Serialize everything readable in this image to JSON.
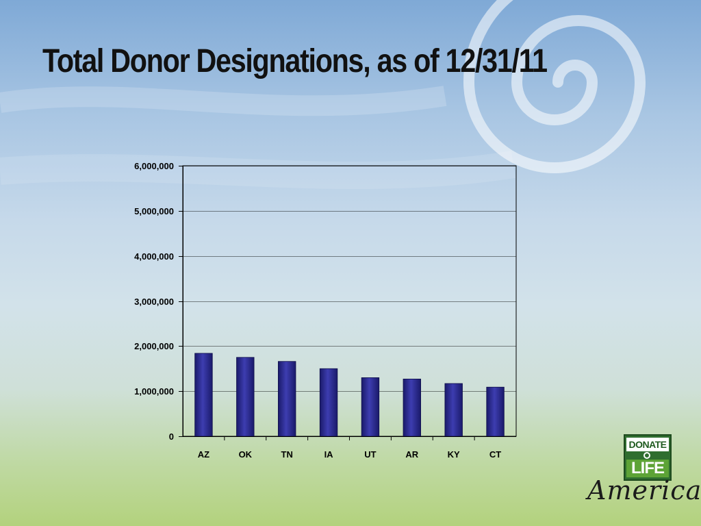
{
  "slide": {
    "title": "Total Donor Designations, as of 12/31/11"
  },
  "logo": {
    "line1": "DONATE",
    "line2": "LIFE",
    "line3": "America"
  },
  "colors": {
    "bar": "#23237e",
    "bar_highlight": "#4b4bb8",
    "grid": "#000000"
  },
  "chart_data": {
    "type": "bar",
    "title": "",
    "xlabel": "",
    "ylabel": "",
    "categories": [
      "AZ",
      "OK",
      "TN",
      "IA",
      "UT",
      "AR",
      "KY",
      "CT"
    ],
    "values": [
      1840000,
      1750000,
      1660000,
      1500000,
      1300000,
      1270000,
      1170000,
      1090000
    ],
    "ylim": [
      0,
      6000000
    ],
    "yticks": [
      0,
      1000000,
      2000000,
      3000000,
      4000000,
      5000000,
      6000000
    ],
    "ytick_labels": [
      "0",
      "1,000,000",
      "2,000,000",
      "3,000,000",
      "4,000,000",
      "5,000,000",
      "6,000,000"
    ],
    "grid": true,
    "legend": "none"
  }
}
